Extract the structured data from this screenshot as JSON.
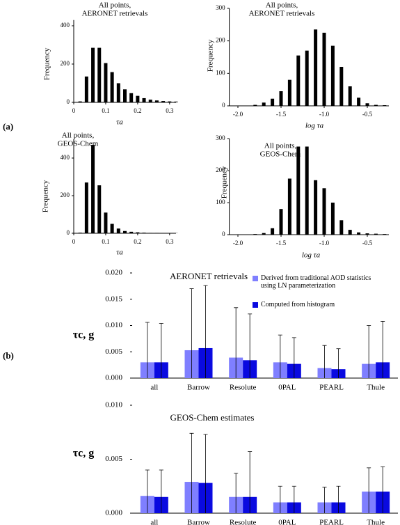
{
  "panel_labels": [
    "(a)",
    "(b)"
  ],
  "chart_data": [
    {
      "type": "bar",
      "title_lines": [
        "All points,",
        "AERONET retrievals"
      ],
      "ylabel": "Frequency",
      "xlabel": "τa",
      "color": "#000000",
      "x": [
        0.02,
        0.04,
        0.06,
        0.08,
        0.1,
        0.12,
        0.14,
        0.16,
        0.18,
        0.2,
        0.22,
        0.24,
        0.26,
        0.28,
        0.3,
        0.32
      ],
      "values": [
        5,
        135,
        285,
        285,
        205,
        158,
        100,
        68,
        48,
        34,
        22,
        14,
        10,
        7,
        5,
        4
      ],
      "xlim": [
        0,
        0.32
      ],
      "xticks": [
        0,
        0.1,
        0.2,
        0.3
      ],
      "ylim": [
        0,
        430
      ],
      "yticks": [
        0,
        200,
        400
      ]
    },
    {
      "type": "bar",
      "title_lines": [
        "All points,",
        "AERONET retrievals"
      ],
      "ylabel": "Frequency",
      "xlabel": "log τa",
      "color": "#000000",
      "x": [
        -1.8,
        -1.7,
        -1.6,
        -1.5,
        -1.4,
        -1.3,
        -1.2,
        -1.1,
        -1.0,
        -0.9,
        -0.8,
        -0.7,
        -0.6,
        -0.5,
        -0.4,
        -0.3
      ],
      "values": [
        3,
        10,
        22,
        45,
        80,
        155,
        170,
        235,
        225,
        185,
        120,
        60,
        25,
        8,
        3,
        2
      ],
      "xlim": [
        -2.1,
        -0.25
      ],
      "xticks": [
        {
          "value": -2.0,
          "label": "-2.0"
        },
        -1.5,
        {
          "value": -1.0,
          "label": "-1.0"
        },
        -0.5
      ],
      "ylim": [
        0,
        300
      ],
      "yticks": [
        0,
        100,
        200,
        300
      ]
    },
    {
      "type": "bar",
      "title_lines": [
        "All points,",
        "GEOS-Chem"
      ],
      "ylabel": "Frequency",
      "xlabel": "τa",
      "color": "#000000",
      "x": [
        0.02,
        0.04,
        0.06,
        0.08,
        0.1,
        0.12,
        0.14,
        0.16,
        0.18,
        0.2,
        0.22,
        0.24,
        0.26,
        0.28,
        0.3,
        0.32
      ],
      "values": [
        3,
        270,
        470,
        255,
        110,
        50,
        25,
        12,
        8,
        5,
        3,
        2,
        2,
        1,
        1,
        1
      ],
      "xlim": [
        0,
        0.32
      ],
      "xticks": [
        0,
        0.1,
        0.2,
        0.3
      ],
      "ylim": [
        0,
        500
      ],
      "yticks": [
        0,
        200,
        400
      ]
    },
    {
      "type": "bar",
      "title_lines": [
        "All points,",
        "GEOS-Chem"
      ],
      "ylabel": "Frequency",
      "xlabel": "log τa",
      "color": "#000000",
      "x": [
        -1.8,
        -1.7,
        -1.6,
        -1.5,
        -1.4,
        -1.3,
        -1.2,
        -1.1,
        -1.0,
        -0.9,
        -0.8,
        -0.7,
        -0.6,
        -0.5,
        -0.4,
        -0.3
      ],
      "values": [
        2,
        5,
        20,
        80,
        175,
        275,
        275,
        170,
        145,
        100,
        45,
        15,
        7,
        4,
        3,
        2
      ],
      "xlim": [
        -2.1,
        -0.25
      ],
      "xticks": [
        {
          "value": -2.0,
          "label": "-2.0"
        },
        -1.5,
        {
          "value": -1.0,
          "label": "-1.0"
        },
        -0.5
      ],
      "ylim": [
        0,
        300
      ],
      "yticks": [
        0,
        100,
        200,
        300
      ]
    },
    {
      "type": "bar",
      "title": "AERONET retrievals",
      "ylabel": "τc, g",
      "legend": "upper right",
      "categories": [
        "all",
        "Barrow",
        "Resolute",
        "0PAL",
        "PEARL",
        "Thule"
      ],
      "series": [
        {
          "name": "Derived from traditional AOD statistics using LN parameterization",
          "color": "#7f7fff",
          "values": [
            0.003,
            0.0053,
            0.0039,
            0.003,
            0.0019,
            0.0027
          ],
          "errors": [
            0.0076,
            0.0117,
            0.0095,
            0.0052,
            0.0043,
            0.0073
          ]
        },
        {
          "name": "Computed from histogram",
          "color": "#0a0ae0",
          "values": [
            0.003,
            0.0057,
            0.0034,
            0.0027,
            0.0017,
            0.003
          ],
          "errors": [
            0.0074,
            0.0119,
            0.0088,
            0.005,
            0.0039,
            0.0078
          ]
        }
      ],
      "ylim": [
        0,
        0.02
      ],
      "yticks": [
        {
          "value": 0,
          "label": "0.000"
        },
        {
          "value": 0.005,
          "label": "0.005"
        },
        {
          "value": 0.01,
          "label": "0.010"
        },
        {
          "value": 0.015,
          "label": "0.015"
        },
        {
          "value": 0.02,
          "label": "0.020"
        }
      ]
    },
    {
      "type": "bar",
      "title": "GEOS-Chem estimates",
      "ylabel": "τc, g",
      "categories": [
        "all",
        "Barrow",
        "Resolute",
        "0PAL",
        "PEARL",
        "Thule"
      ],
      "series": [
        {
          "color": "#7f7fff",
          "values": [
            0.0016,
            0.0029,
            0.0015,
            0.001,
            0.001,
            0.002
          ],
          "errors": [
            0.0024,
            0.0045,
            0.0022,
            0.0015,
            0.0014,
            0.0022
          ]
        },
        {
          "color": "#0a0ae0",
          "values": [
            0.0015,
            0.0028,
            0.0015,
            0.001,
            0.001,
            0.002
          ],
          "errors": [
            0.0025,
            0.0045,
            0.0042,
            0.0015,
            0.0015,
            0.0023
          ]
        }
      ],
      "ylim": [
        0,
        0.01
      ],
      "yticks": [
        {
          "value": 0,
          "label": "0.000"
        },
        {
          "value": 0.005,
          "label": "0.005"
        },
        {
          "value": 0.01,
          "label": "0.010"
        }
      ]
    }
  ]
}
